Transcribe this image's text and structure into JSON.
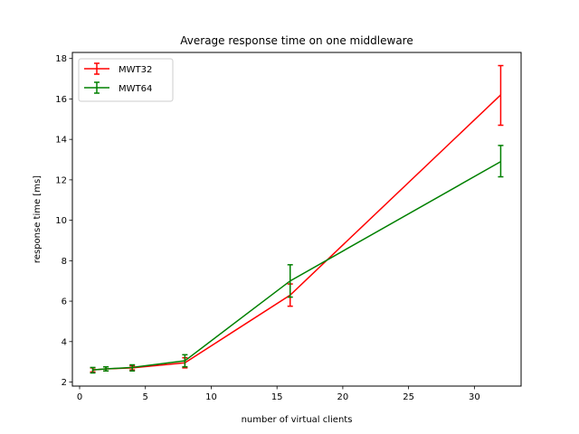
{
  "chart_data": {
    "type": "line",
    "title": "Average response time on one middleware",
    "xlabel": "number of virtual clients",
    "ylabel": "response time [ms]",
    "xlim": [
      -0.55,
      33.55
    ],
    "ylim": [
      1.8,
      18.3
    ],
    "xticks": [
      0,
      5,
      10,
      15,
      20,
      25,
      30
    ],
    "yticks": [
      2,
      4,
      6,
      8,
      10,
      12,
      14,
      16,
      18
    ],
    "grid": false,
    "legend_position": "upper-left",
    "x": [
      1,
      2,
      4,
      8,
      16,
      32
    ],
    "series": [
      {
        "name": "MWT32",
        "color": "#ff0000",
        "values": [
          2.6,
          2.65,
          2.7,
          2.95,
          6.3,
          16.2
        ],
        "err_low": [
          2.5,
          2.55,
          2.6,
          2.7,
          5.75,
          14.7
        ],
        "err_high": [
          2.7,
          2.75,
          2.8,
          3.2,
          6.85,
          17.65
        ]
      },
      {
        "name": "MWT64",
        "color": "#008000",
        "values": [
          2.6,
          2.65,
          2.72,
          3.05,
          7.0,
          12.9
        ],
        "err_low": [
          2.45,
          2.55,
          2.55,
          2.75,
          6.2,
          12.15
        ],
        "err_high": [
          2.72,
          2.75,
          2.85,
          3.35,
          7.8,
          13.7
        ]
      }
    ]
  }
}
